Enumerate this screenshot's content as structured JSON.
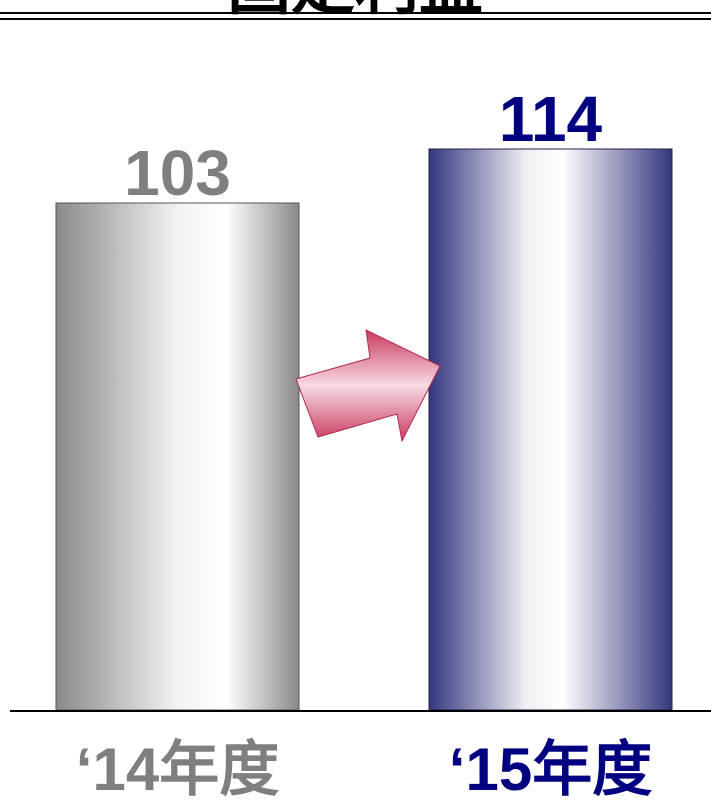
{
  "chart_data": {
    "type": "bar",
    "title": "固定利益",
    "categories": [
      "‘14年度",
      "‘15年度"
    ],
    "values": [
      103,
      114
    ],
    "value_labels": [
      "103",
      "114"
    ],
    "ylim": [
      0,
      120
    ],
    "grid": false,
    "legend": "none",
    "colors": {
      "bar_2014": "#7f7f7f",
      "bar_2015": "#34367f",
      "label_2014": "#7f7f7f",
      "label_2015": "#000080",
      "arrow": "#d6476c",
      "axis": "#000000"
    }
  }
}
